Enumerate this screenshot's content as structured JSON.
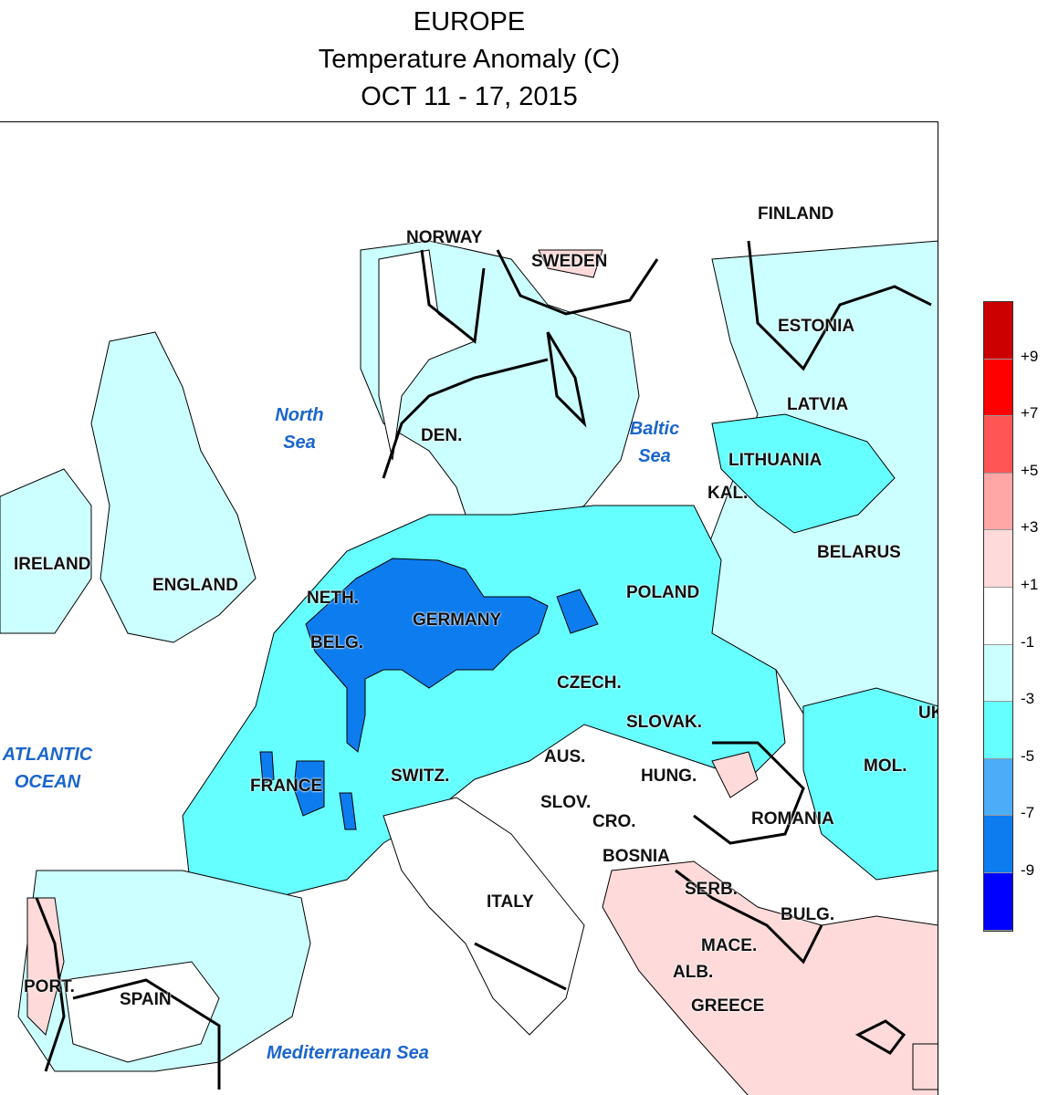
{
  "title": {
    "line1": "EUROPE",
    "line2": "Temperature Anomaly (C)",
    "line3": "OCT 11 - 17, 2015"
  },
  "countries": {
    "norway": "NORWAY",
    "sweden": "SWEDEN",
    "finland": "FINLAND",
    "estonia": "ESTONIA",
    "latvia": "LATVIA",
    "lithuania": "LITHUANIA",
    "kal": "KAL.",
    "belarus": "BELARUS",
    "ukraine": "UK",
    "den": "DEN.",
    "ireland": "IRELAND",
    "england": "ENGLAND",
    "neth": "NETH.",
    "belg": "BELG.",
    "germany": "GERMANY",
    "poland": "POLAND",
    "czech": "CZECH.",
    "slovak": "SLOVAK.",
    "aus": "AUS.",
    "hung": "HUNG.",
    "mol": "MOL.",
    "france": "FRANCE",
    "switz": "SWITZ.",
    "slov": "SLOV.",
    "cro": "CRO.",
    "romania": "ROMANIA",
    "bosnia": "BOSNIA",
    "serb": "SERB.",
    "italy": "ITALY",
    "bulg": "BULG.",
    "mace": "MACE.",
    "alb": "ALB.",
    "greece": "GREECE",
    "port": "PORT.",
    "spain": "SPAIN"
  },
  "seas": {
    "north_sea": "North Sea",
    "baltic_sea": "Baltic Sea",
    "atlantic_ocean": "ATLANTIC OCEAN",
    "mediterranean": "Mediterranean Sea"
  },
  "legend": {
    "colors": [
      "#cc0000",
      "#ff0000",
      "#ff5555",
      "#ffa6a6",
      "#ffdada",
      "#ffffff",
      "#ccffff",
      "#66ffff",
      "#4dacf8",
      "#0d7cef",
      "#0000ff"
    ],
    "labels": [
      "+9",
      "+7",
      "+5",
      "+3",
      "+1",
      "-1",
      "-3",
      "-5",
      "-7",
      "-9"
    ]
  },
  "shading": {
    "light_cyan": "#ccffff",
    "cyan": "#66ffff",
    "dark_blue": "#0d7cef",
    "pink": "#ffdada",
    "ocean": "#ffffff"
  }
}
